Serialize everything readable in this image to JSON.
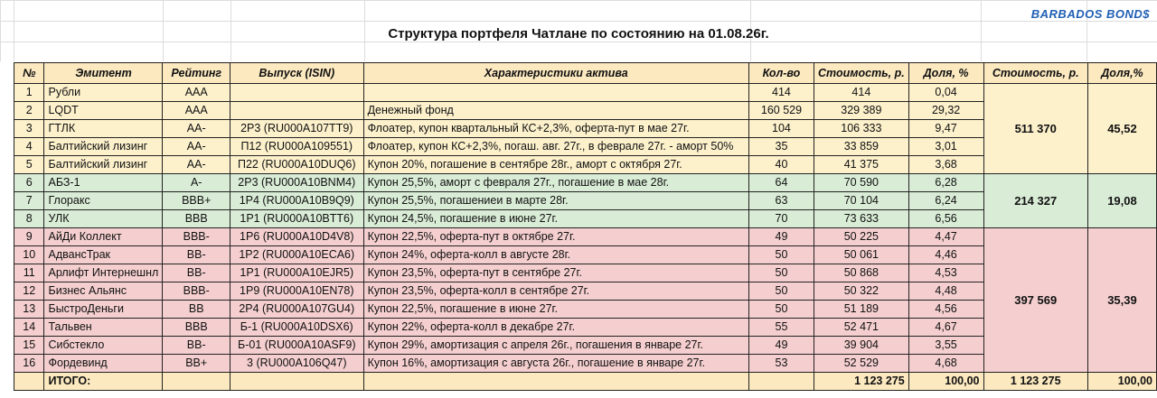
{
  "brand": "BARBADOS BOND$",
  "title": "Структура портфеля Чатлане по состоянию на 01.08.26г.",
  "headers": [
    "№",
    "Эмитент",
    "Рейтинг",
    "Выпуск (ISIN)",
    "Характеристики актива",
    "Кол-во",
    "Стоимость, р.",
    "Доля, %",
    "Стоимость, р.",
    "Доля,%"
  ],
  "rows": [
    {
      "n": "1",
      "issuer": "Рубли",
      "rating": "AAA",
      "isin": "",
      "desc": "",
      "qty": "414",
      "value": "414",
      "share": "0,04"
    },
    {
      "n": "2",
      "issuer": "LQDT",
      "rating": "AAA",
      "isin": "",
      "desc": "Денежный фонд",
      "qty": "160 529",
      "value": "329 389",
      "share": "29,32"
    },
    {
      "n": "3",
      "issuer": "ГТЛК",
      "rating": "AA-",
      "isin": "2Р3 (RU000A107TT9)",
      "desc": "Флоатер, купон квартальный КС+2,3%, оферта-пут в мае 27г.",
      "qty": "104",
      "value": "106 333",
      "share": "9,47"
    },
    {
      "n": "4",
      "issuer": "Балтийский лизинг",
      "rating": "AA-",
      "isin": "П12 (RU000A109551)",
      "desc": "Флоатер, купон КС+2,3%, погаш. авг. 27г., в феврале 27г. - аморт 50%",
      "qty": "35",
      "value": "33 859",
      "share": "3,01"
    },
    {
      "n": "5",
      "issuer": "Балтийский лизинг",
      "rating": "AA-",
      "isin": "П22 (RU000A10DUQ6)",
      "desc": "Купон 20%, погашение в сентябре 28г., аморт с октября 27г.",
      "qty": "40",
      "value": "41 375",
      "share": "3,68"
    },
    {
      "n": "6",
      "issuer": "АБЗ-1",
      "rating": "A-",
      "isin": "2Р3 (RU000A10BNM4)",
      "desc": "Купон 25,5%, аморт с февраля 27г., погашение в мае 28г.",
      "qty": "64",
      "value": "70 590",
      "share": "6,28"
    },
    {
      "n": "7",
      "issuer": "Глоракс",
      "rating": "BBB+",
      "isin": "1Р4 (RU000A10B9Q9)",
      "desc": "Купон 25,5%, погашениеи в марте 28г.",
      "qty": "63",
      "value": "70 104",
      "share": "6,24"
    },
    {
      "n": "8",
      "issuer": "УЛК",
      "rating": "BBB",
      "isin": "1Р1 (RU000A10BTT6)",
      "desc": "Купон 24,5%, погашение в июне 27г.",
      "qty": "70",
      "value": "73 633",
      "share": "6,56"
    },
    {
      "n": "9",
      "issuer": "АйДи Коллект",
      "rating": "BBB-",
      "isin": "1Р6 (RU000A10D4V8)",
      "desc": "Купон 22,5%, оферта-пут в октябре 27г.",
      "qty": "49",
      "value": "50 225",
      "share": "4,47"
    },
    {
      "n": "10",
      "issuer": "АдвансТрак",
      "rating": "BB-",
      "isin": "1Р2 (RU000A10ECA6)",
      "desc": "Купон 24%, оферта-колл в августе 28г.",
      "qty": "50",
      "value": "50 061",
      "share": "4,46"
    },
    {
      "n": "11",
      "issuer": "Арлифт Интернешнл",
      "rating": "BB-",
      "isin": "1Р1 (RU000A10EJR5)",
      "desc": "Купон 23,5%, оферта-пут в сентябре 27г.",
      "qty": "50",
      "value": "50 868",
      "share": "4,53"
    },
    {
      "n": "12",
      "issuer": "Бизнес Альянс",
      "rating": "BBB-",
      "isin": "1Р9 (RU000A10EN78)",
      "desc": "Купон 23,5%, оферта-колл в сентябре 27г.",
      "qty": "50",
      "value": "50 322",
      "share": "4,48"
    },
    {
      "n": "13",
      "issuer": "БыстроДеньги",
      "rating": "BB",
      "isin": "2Р4 (RU000A107GU4)",
      "desc": "Купон 22,5%, погашение в июне 27г.",
      "qty": "50",
      "value": "51 189",
      "share": "4,56"
    },
    {
      "n": "14",
      "issuer": "Тальвен",
      "rating": "BBB",
      "isin": "Б-1 (RU000A10DSX6)",
      "desc": "Купон 22%, оферта-колл в декабре 27г.",
      "qty": "55",
      "value": "52 471",
      "share": "4,67"
    },
    {
      "n": "15",
      "issuer": "Сибстекло",
      "rating": "BB-",
      "isin": "Б-01 (RU000A10ASF9)",
      "desc": "Купон 29%, амортизация с апреля 26г., погашения в январе 27г.",
      "qty": "49",
      "value": "39 904",
      "share": "3,55"
    },
    {
      "n": "16",
      "issuer": "Фордевинд",
      "rating": "BB+",
      "isin": "3 (RU000A106Q47)",
      "desc": "Купон 16%, амортизация с августа 26г., погашение в январе 27г.",
      "qty": "53",
      "value": "52 529",
      "share": "4,68"
    }
  ],
  "groups": [
    {
      "value": "511 370",
      "share": "45,52"
    },
    {
      "value": "214 327",
      "share": "19,08"
    },
    {
      "value": "397 569",
      "share": "35,39"
    }
  ],
  "total": {
    "label": "ИТОГО:",
    "value": "1 123 275",
    "share": "100,00",
    "agg_value": "1 123 275",
    "agg_share": "100,00"
  },
  "colors": {
    "header": "#fce9c0",
    "group1": "#fdf1cc",
    "group2": "#d9ecd6",
    "group3": "#f5cfcf",
    "brand": "#1f5fb4"
  }
}
